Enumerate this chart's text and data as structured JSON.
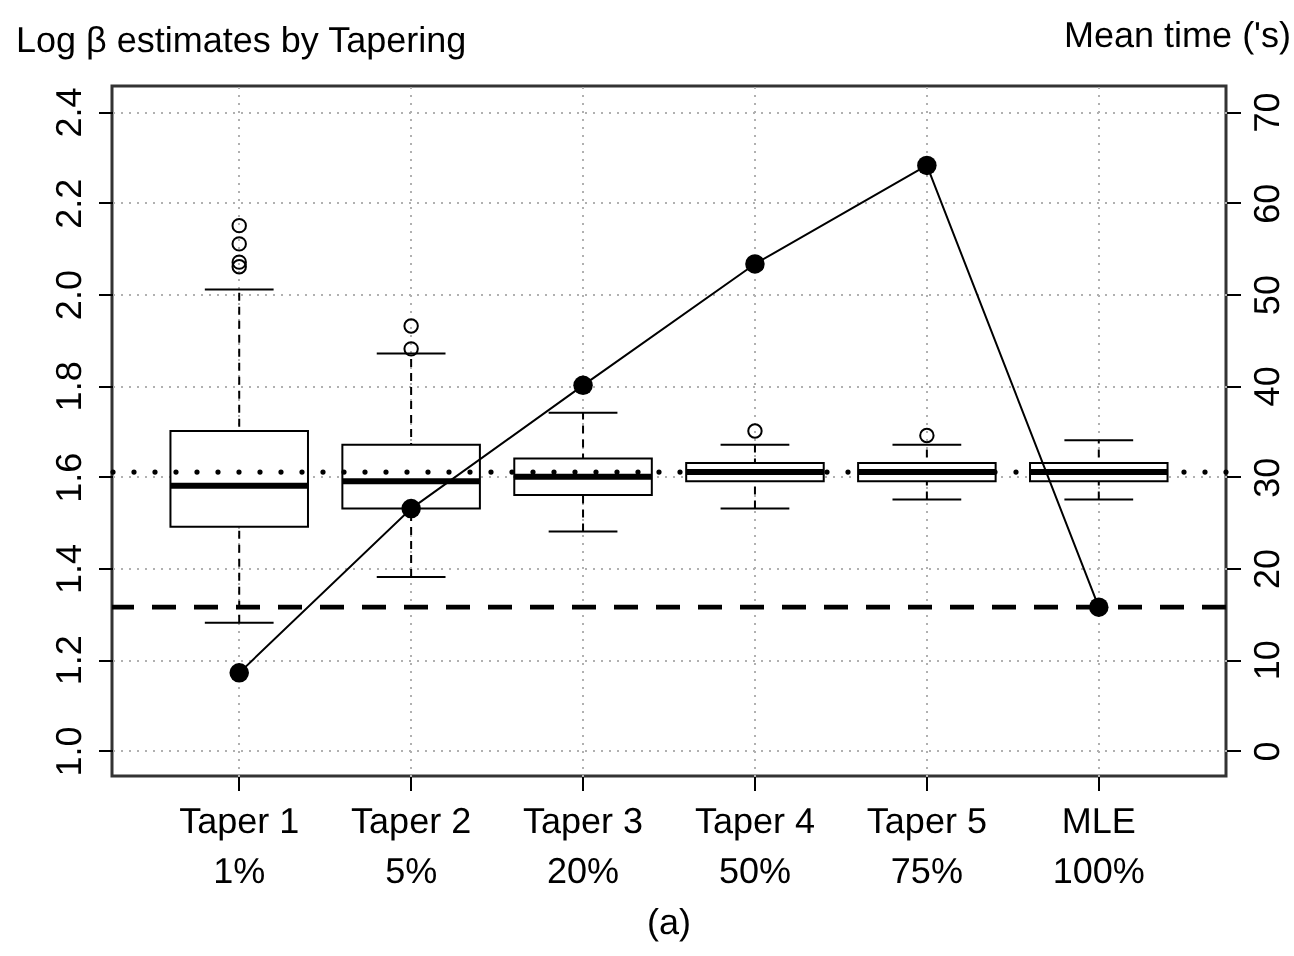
{
  "chart_data": {
    "type": "box",
    "title": "Log β estimates by Tapering",
    "y2label": "Mean time ('s)",
    "annotations": [
      "(a)"
    ],
    "categories": [
      "Taper 1\n1%",
      "Taper 2\n5%",
      "Taper 3\n20%",
      "Taper 4\n50%",
      "Taper 5\n75%",
      "MLE\n100%"
    ],
    "series": [
      {
        "color": "#000000",
        "boxes": [
          {
            "low": 1.28,
            "q1": 1.49,
            "median": 1.58,
            "q3": 1.7,
            "high": 2.01,
            "outliers": [
              2.06,
              2.07,
              2.11,
              2.15
            ]
          },
          {
            "low": 1.38,
            "q1": 1.53,
            "median": 1.59,
            "q3": 1.67,
            "high": 1.87,
            "outliers": [
              1.88,
              1.93
            ]
          },
          {
            "low": 1.48,
            "q1": 1.56,
            "median": 1.6,
            "q3": 1.64,
            "high": 1.74
          },
          {
            "low": 1.53,
            "q1": 1.59,
            "median": 1.61,
            "q3": 1.63,
            "high": 1.67,
            "outliers": [
              1.7
            ]
          },
          {
            "low": 1.55,
            "q1": 1.59,
            "median": 1.61,
            "q3": 1.63,
            "high": 1.67,
            "outliers": [
              1.69
            ]
          },
          {
            "low": 1.55,
            "q1": 1.59,
            "median": 1.61,
            "q3": 1.63,
            "high": 1.68
          }
        ]
      },
      {
        "type": "line",
        "axis": "y2",
        "color": "#000000",
        "marker": "circle",
        "values": [
          8.5,
          26.5,
          40,
          53.3,
          64.1,
          15.7
        ]
      }
    ],
    "ref_lines": [
      {
        "axis": "y",
        "value": 1.61,
        "line_style": "dotted",
        "color": "#000000"
      },
      {
        "axis": "y2",
        "value": 15.7,
        "line_style": "dashed",
        "color": "#000000"
      }
    ],
    "ylim": [
      0.944,
      2.456
    ],
    "yticks": [
      {
        "value": 1,
        "label": "1.0"
      },
      1.2,
      1.4,
      1.6,
      1.8,
      {
        "value": 2,
        "label": "2.0"
      },
      2.2,
      2.4
    ],
    "y2lim": [
      -2.8,
      72.8
    ],
    "y2ticks": [
      0,
      10,
      20,
      30,
      40,
      50,
      60,
      70
    ],
    "grid": true
  }
}
